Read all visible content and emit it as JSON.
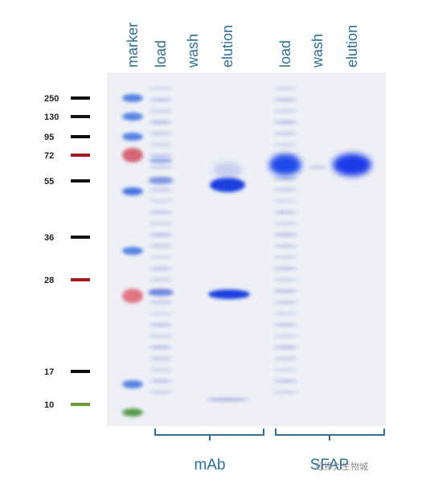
{
  "lanes": [
    "marker",
    "load",
    "wash",
    "elution",
    "load",
    "wash",
    "elution"
  ],
  "ladder": [
    "250",
    "130",
    "95",
    "72",
    "55",
    "36",
    "28",
    "17",
    "10"
  ],
  "groups": [
    "mAb",
    "SFAP"
  ],
  "watermark": "远择力生物城"
}
